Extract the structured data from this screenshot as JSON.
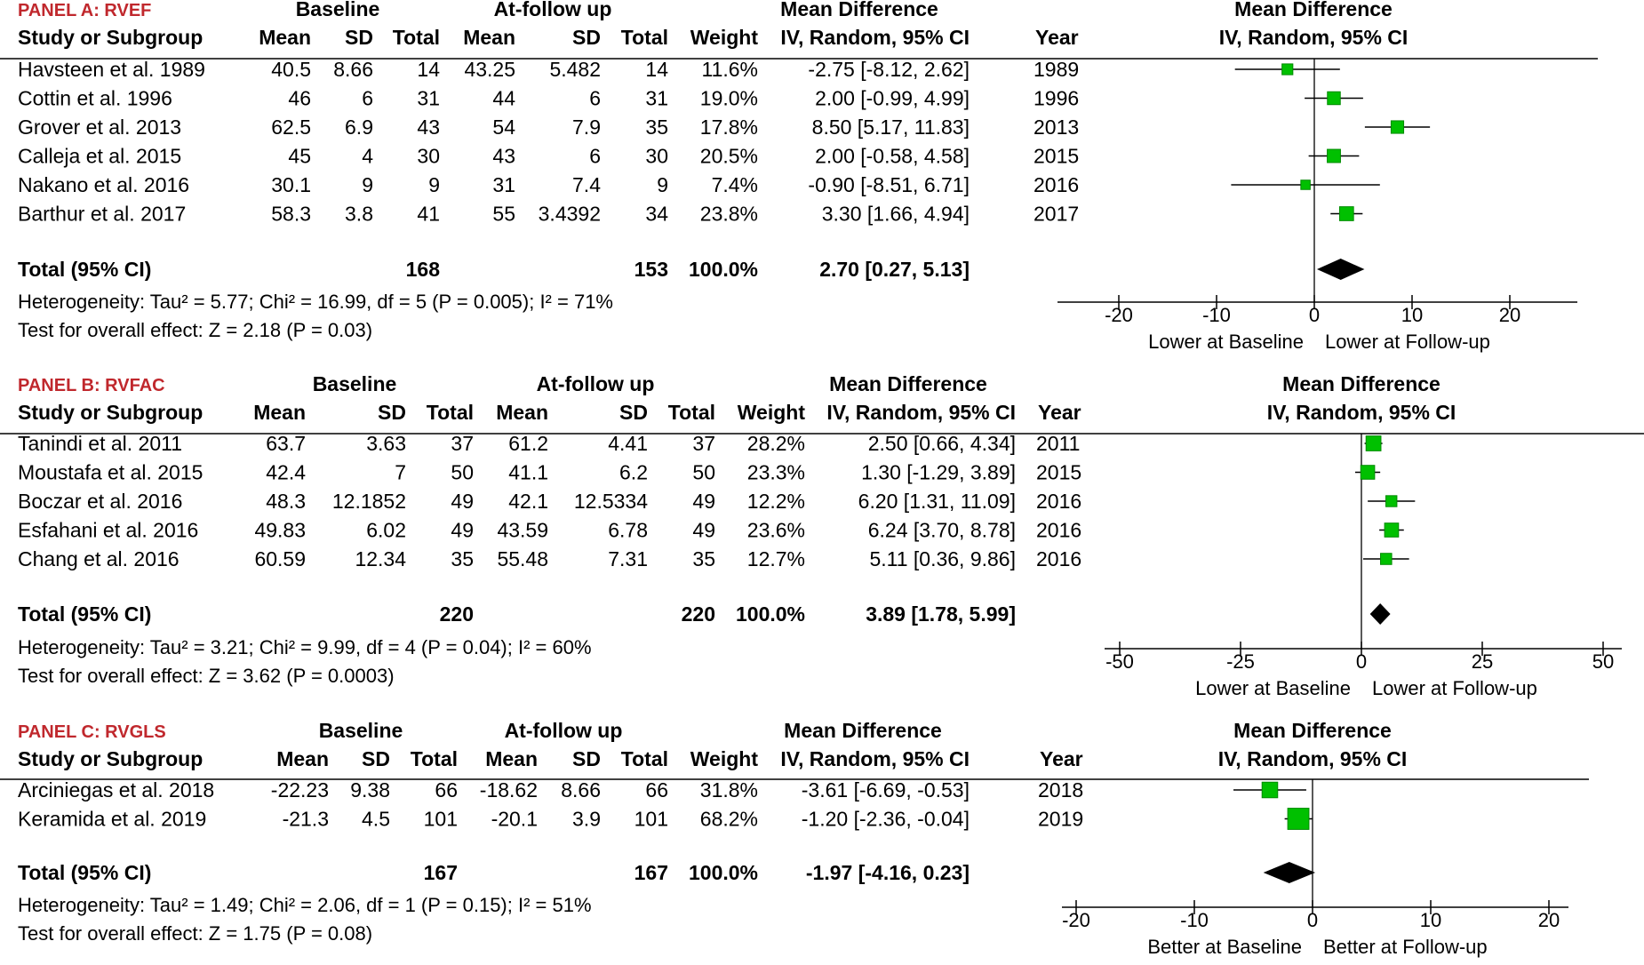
{
  "headers": {
    "baseline": "Baseline",
    "followup": "At-follow up",
    "mean_difference": "Mean Difference",
    "method": "IV, Random, 95% CI",
    "study": "Study or Subgroup",
    "mean": "Mean",
    "sd": "SD",
    "total": "Total",
    "weight": "Weight",
    "year": "Year"
  },
  "colors": {
    "panel_title": "#c0282d",
    "marker": "#00c000",
    "marker_border": "#008a00",
    "line": "#000000"
  },
  "chart_data": [
    {
      "type": "forest",
      "title": "PANEL A: RVEF",
      "xlim": [
        -25,
        27
      ],
      "ticks": [
        -20,
        -10,
        0,
        10,
        20
      ],
      "tick_labels": [
        "-20",
        "-10",
        "0",
        "10",
        "20"
      ],
      "favours_left": "Lower at Baseline",
      "favours_right": "Lower at Follow-up",
      "studies": [
        {
          "name": "Havsteen et al. 1989",
          "b_mean": "40.5",
          "b_sd": "8.66",
          "b_total": "14",
          "f_mean": "43.25",
          "f_sd": "5.482",
          "f_total": "14",
          "weight": "11.6%",
          "ci_text": "-2.75 [-8.12, 2.62]",
          "year": "1989",
          "md": -2.75,
          "lo": -8.12,
          "hi": 2.62,
          "w": 11.6
        },
        {
          "name": "Cottin et al. 1996",
          "b_mean": "46",
          "b_sd": "6",
          "b_total": "31",
          "f_mean": "44",
          "f_sd": "6",
          "f_total": "31",
          "weight": "19.0%",
          "ci_text": "2.00 [-0.99, 4.99]",
          "year": "1996",
          "md": 2.0,
          "lo": -0.99,
          "hi": 4.99,
          "w": 19.0
        },
        {
          "name": "Grover et al. 2013",
          "b_mean": "62.5",
          "b_sd": "6.9",
          "b_total": "43",
          "f_mean": "54",
          "f_sd": "7.9",
          "f_total": "35",
          "weight": "17.8%",
          "ci_text": "8.50 [5.17, 11.83]",
          "year": "2013",
          "md": 8.5,
          "lo": 5.17,
          "hi": 11.83,
          "w": 17.8
        },
        {
          "name": "Calleja et al. 2015",
          "b_mean": "45",
          "b_sd": "4",
          "b_total": "30",
          "f_mean": "43",
          "f_sd": "6",
          "f_total": "30",
          "weight": "20.5%",
          "ci_text": "2.00 [-0.58, 4.58]",
          "year": "2015",
          "md": 2.0,
          "lo": -0.58,
          "hi": 4.58,
          "w": 20.5
        },
        {
          "name": "Nakano et al. 2016",
          "b_mean": "30.1",
          "b_sd": "9",
          "b_total": "9",
          "f_mean": "31",
          "f_sd": "7.4",
          "f_total": "9",
          "weight": "7.4%",
          "ci_text": "-0.90 [-8.51, 6.71]",
          "year": "2016",
          "md": -0.9,
          "lo": -8.51,
          "hi": 6.71,
          "w": 7.4
        },
        {
          "name": "Barthur et al. 2017",
          "b_mean": "58.3",
          "b_sd": "3.8",
          "b_total": "41",
          "f_mean": "55",
          "f_sd": "3.4392",
          "f_total": "34",
          "weight": "23.8%",
          "ci_text": "3.30 [1.66, 4.94]",
          "year": "2017",
          "md": 3.3,
          "lo": 1.66,
          "hi": 4.94,
          "w": 23.8
        }
      ],
      "total": {
        "label": "Total (95% CI)",
        "b_total": "168",
        "f_total": "153",
        "weight": "100.0%",
        "ci_text": "2.70 [0.27, 5.13]",
        "md": 2.7,
        "lo": 0.27,
        "hi": 5.13
      },
      "heterogeneity": "Heterogeneity: Tau² = 5.77; Chi² = 16.99, df = 5 (P = 0.005); I² = 71%",
      "overall": "Test for overall effect: Z = 2.18 (P = 0.03)"
    },
    {
      "type": "forest",
      "title": "PANEL B: RVFAC",
      "xlim": [
        -55,
        55
      ],
      "ticks": [
        -50,
        -25,
        0,
        25,
        50
      ],
      "tick_labels": [
        "-50",
        "-25",
        "0",
        "25",
        "50"
      ],
      "favours_left": "Lower at Baseline",
      "favours_right": "Lower at Follow-up",
      "studies": [
        {
          "name": "Tanindi et al. 2011",
          "b_mean": "63.7",
          "b_sd": "3.63",
          "b_total": "37",
          "f_mean": "61.2",
          "f_sd": "4.41",
          "f_total": "37",
          "weight": "28.2%",
          "ci_text": "2.50 [0.66, 4.34]",
          "year": "2011",
          "md": 2.5,
          "lo": 0.66,
          "hi": 4.34,
          "w": 28.2
        },
        {
          "name": "Moustafa et al. 2015",
          "b_mean": "42.4",
          "b_sd": "7",
          "b_total": "50",
          "f_mean": "41.1",
          "f_sd": "6.2",
          "f_total": "50",
          "weight": "23.3%",
          "ci_text": "1.30 [-1.29, 3.89]",
          "year": "2015",
          "md": 1.3,
          "lo": -1.29,
          "hi": 3.89,
          "w": 23.3
        },
        {
          "name": "Boczar et al. 2016",
          "b_mean": "48.3",
          "b_sd": "12.1852",
          "b_total": "49",
          "f_mean": "42.1",
          "f_sd": "12.5334",
          "f_total": "49",
          "weight": "12.2%",
          "ci_text": "6.20 [1.31, 11.09]",
          "year": "2016",
          "md": 6.2,
          "lo": 1.31,
          "hi": 11.09,
          "w": 12.2
        },
        {
          "name": "Esfahani et al. 2016",
          "b_mean": "49.83",
          "b_sd": "6.02",
          "b_total": "49",
          "f_mean": "43.59",
          "f_sd": "6.78",
          "f_total": "49",
          "weight": "23.6%",
          "ci_text": "6.24 [3.70, 8.78]",
          "year": "2016",
          "md": 6.24,
          "lo": 3.7,
          "hi": 8.78,
          "w": 23.6
        },
        {
          "name": "Chang et al. 2016",
          "b_mean": "60.59",
          "b_sd": "12.34",
          "b_total": "35",
          "f_mean": "55.48",
          "f_sd": "7.31",
          "f_total": "35",
          "weight": "12.7%",
          "ci_text": "5.11 [0.36, 9.86]",
          "year": "2016",
          "md": 5.11,
          "lo": 0.36,
          "hi": 9.86,
          "w": 12.7
        }
      ],
      "total": {
        "label": "Total (95% CI)",
        "b_total": "220",
        "f_total": "220",
        "weight": "100.0%",
        "ci_text": "3.89 [1.78, 5.99]",
        "md": 3.89,
        "lo": 1.78,
        "hi": 5.99
      },
      "heterogeneity": "Heterogeneity: Tau² = 3.21; Chi² = 9.99, df = 4 (P = 0.04); I² = 60%",
      "overall": "Test for overall effect: Z = 3.62 (P = 0.0003)"
    },
    {
      "type": "forest",
      "title": "PANEL C: RVGLS",
      "xlim": [
        -21,
        22
      ],
      "ticks": [
        -20,
        -10,
        0,
        10,
        20
      ],
      "tick_labels": [
        "-20",
        "-10",
        "0",
        "10",
        "20"
      ],
      "favours_left": "Better at Baseline",
      "favours_right": "Better at Follow-up",
      "studies": [
        {
          "name": "Arciniegas et al. 2018",
          "b_mean": "-22.23",
          "b_sd": "9.38",
          "b_total": "66",
          "f_mean": "-18.62",
          "f_sd": "8.66",
          "f_total": "66",
          "weight": "31.8%",
          "ci_text": "-3.61 [-6.69, -0.53]",
          "year": "2018",
          "md": -3.61,
          "lo": -6.69,
          "hi": -0.53,
          "w": 31.8
        },
        {
          "name": "Keramida et al. 2019",
          "b_mean": "-21.3",
          "b_sd": "4.5",
          "b_total": "101",
          "f_mean": "-20.1",
          "f_sd": "3.9",
          "f_total": "101",
          "weight": "68.2%",
          "ci_text": "-1.20 [-2.36, -0.04]",
          "year": "2019",
          "md": -1.2,
          "lo": -2.36,
          "hi": -0.04,
          "w": 68.2
        }
      ],
      "total": {
        "label": "Total (95% CI)",
        "b_total": "167",
        "f_total": "167",
        "weight": "100.0%",
        "ci_text": "-1.97 [-4.16, 0.23]",
        "md": -1.97,
        "lo": -4.16,
        "hi": 0.23
      },
      "heterogeneity": "Heterogeneity: Tau² = 1.49; Chi² = 2.06, df = 1 (P = 0.15); I² = 51%",
      "overall": "Test for overall effect: Z = 1.75 (P = 0.08)"
    }
  ]
}
